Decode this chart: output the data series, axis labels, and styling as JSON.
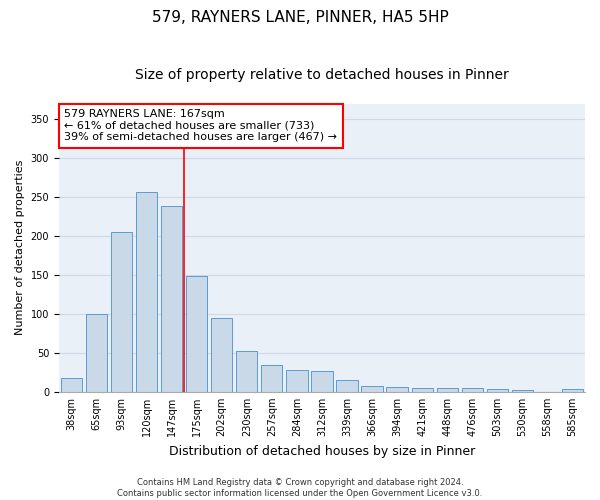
{
  "title": "579, RAYNERS LANE, PINNER, HA5 5HP",
  "subtitle": "Size of property relative to detached houses in Pinner",
  "xlabel": "Distribution of detached houses by size in Pinner",
  "ylabel": "Number of detached properties",
  "categories": [
    "38sqm",
    "65sqm",
    "93sqm",
    "120sqm",
    "147sqm",
    "175sqm",
    "202sqm",
    "230sqm",
    "257sqm",
    "284sqm",
    "312sqm",
    "339sqm",
    "366sqm",
    "394sqm",
    "421sqm",
    "448sqm",
    "476sqm",
    "503sqm",
    "530sqm",
    "558sqm",
    "585sqm"
  ],
  "values": [
    18,
    100,
    205,
    257,
    238,
    148,
    95,
    52,
    35,
    28,
    27,
    15,
    8,
    6,
    5,
    5,
    5,
    3,
    2,
    0,
    3
  ],
  "bar_color": "#c9d9e8",
  "bar_edge_color": "#5b9bd5",
  "vline_x": 4.5,
  "vline_color": "red",
  "annotation_text": "579 RAYNERS LANE: 167sqm\n← 61% of detached houses are smaller (733)\n39% of semi-detached houses are larger (467) →",
  "annotation_box_color": "white",
  "annotation_box_edge_color": "red",
  "ylim": [
    0,
    370
  ],
  "yticks": [
    0,
    50,
    100,
    150,
    200,
    250,
    300,
    350
  ],
  "grid_color": "#d0d8e8",
  "background_color": "#eaf0f8",
  "footer": "Contains HM Land Registry data © Crown copyright and database right 2024.\nContains public sector information licensed under the Open Government Licence v3.0.",
  "title_fontsize": 11,
  "subtitle_fontsize": 10,
  "xlabel_fontsize": 9,
  "ylabel_fontsize": 8,
  "tick_fontsize": 7,
  "annotation_fontsize": 8,
  "footer_fontsize": 6
}
